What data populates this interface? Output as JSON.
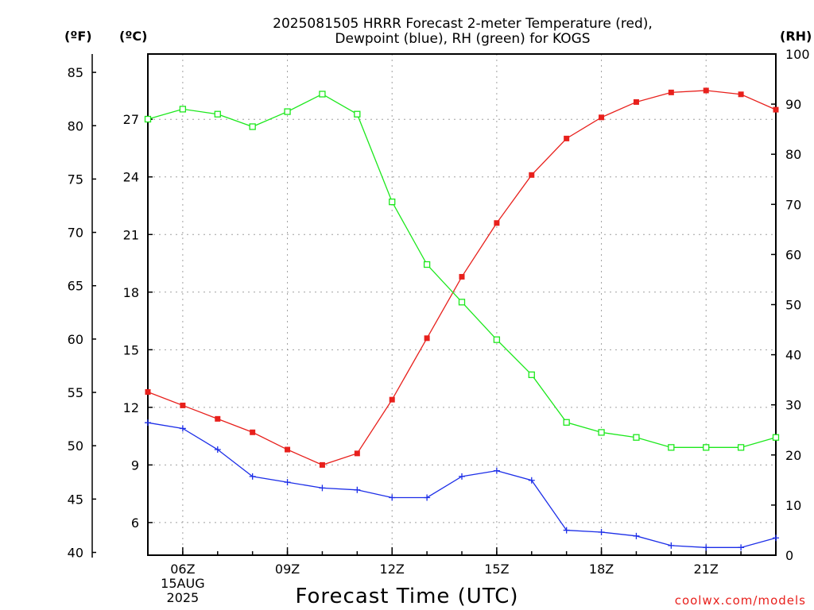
{
  "chart_data": {
    "type": "line",
    "title": [
      "2025081505 HRRR Forecast 2-meter Temperature (red),",
      "Dewpoint (blue), RH (green) for KOGS"
    ],
    "xlabel": "Forecast Time (UTC)",
    "x": [
      "05Z",
      "06Z",
      "07Z",
      "08Z",
      "09Z",
      "10Z",
      "11Z",
      "12Z",
      "13Z",
      "14Z",
      "15Z",
      "16Z",
      "17Z",
      "18Z",
      "19Z",
      "20Z",
      "21Z",
      "22Z",
      "23Z"
    ],
    "x_tick_labels": [
      {
        "x": "06Z",
        "lines": [
          "06Z",
          "15AUG",
          "2025"
        ]
      },
      {
        "x": "09Z",
        "lines": [
          "09Z"
        ]
      },
      {
        "x": "12Z",
        "lines": [
          "12Z"
        ]
      },
      {
        "x": "15Z",
        "lines": [
          "15Z"
        ]
      },
      {
        "x": "18Z",
        "lines": [
          "18Z"
        ]
      },
      {
        "x": "21Z",
        "lines": [
          "21Z"
        ]
      }
    ],
    "axes": {
      "fahrenheit": {
        "unit_label": "(ºF)",
        "ticks": [
          40,
          45,
          50,
          55,
          60,
          65,
          70,
          75,
          80,
          85
        ]
      },
      "celsius": {
        "unit_label": "(ºC)",
        "range": [
          4.3,
          30.4
        ],
        "ticks": [
          6,
          9,
          12,
          15,
          18,
          21,
          24,
          27
        ]
      },
      "rh": {
        "unit_label": "(RH)",
        "range": [
          0,
          100
        ],
        "ticks": [
          0,
          10,
          20,
          30,
          40,
          50,
          60,
          70,
          80,
          90,
          100
        ]
      }
    },
    "grid": true,
    "series": [
      {
        "name": "Temperature",
        "axis": "celsius",
        "color": "#e8201c",
        "marker": "filled-square",
        "values": [
          12.8,
          12.1,
          11.4,
          10.7,
          9.8,
          9.0,
          9.6,
          12.4,
          15.6,
          18.8,
          21.6,
          24.1,
          26.0,
          27.1,
          27.9,
          28.4,
          28.5,
          28.3,
          27.5
        ]
      },
      {
        "name": "Dewpoint",
        "axis": "celsius",
        "color": "#1c2ee8",
        "marker": "plus",
        "values": [
          11.2,
          10.9,
          9.8,
          8.4,
          8.1,
          7.8,
          7.7,
          7.3,
          7.3,
          8.4,
          8.7,
          8.2,
          5.6,
          5.5,
          5.3,
          4.8,
          4.7,
          4.7,
          5.2
        ]
      },
      {
        "name": "RH",
        "axis": "rh",
        "color": "#1ce81c",
        "marker": "open-square",
        "values": [
          87,
          89,
          88,
          85.5,
          88.5,
          92,
          88,
          70.5,
          58,
          50.5,
          43,
          36,
          26.5,
          24.5,
          23.5,
          21.5,
          21.5,
          21.5,
          23.5
        ]
      }
    ]
  },
  "watermark": "coolwx.com/models",
  "colors": {
    "temperature": "#e8201c",
    "dewpoint": "#1c2ee8",
    "rh": "#1ce81c",
    "grid": "#a0a0a0",
    "watermark": "#e8201c"
  }
}
